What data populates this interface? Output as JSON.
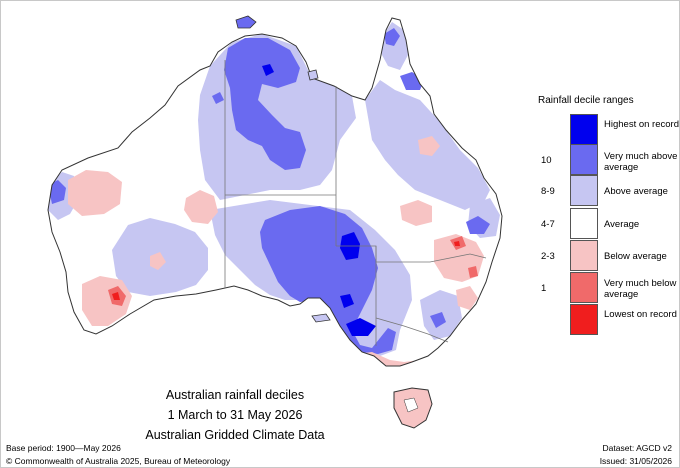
{
  "map": {
    "caption_line1": "Australian rainfall deciles",
    "caption_line2": "1 March to 31 May 2026",
    "caption_line3": "Australian Gridded Climate Data"
  },
  "legend": {
    "title": "Rainfall decile ranges",
    "entries": [
      {
        "label": "Highest on record",
        "decile": "",
        "color": "#0000ee"
      },
      {
        "label": "Very much above average",
        "decile": "10",
        "color": "#6a6af0"
      },
      {
        "label": "Above average",
        "decile": "8-9",
        "color": "#c6c6f2"
      },
      {
        "label": "Average",
        "decile": "4-7",
        "color": "#ffffff"
      },
      {
        "label": "Below average",
        "decile": "2-3",
        "color": "#f7c4c4"
      },
      {
        "label": "Very much below average",
        "decile": "1",
        "color": "#f06a6a"
      },
      {
        "label": "Lowest on record",
        "decile": "",
        "color": "#f01e1e"
      }
    ]
  },
  "footer": {
    "base_period": "Base period: 1900—May 2026",
    "dataset": "Dataset: AGCD v2",
    "copyright": "© Commonwealth of Australia 2025, Bureau of Meteorology",
    "issued": "Issued: 31/05/2026"
  }
}
